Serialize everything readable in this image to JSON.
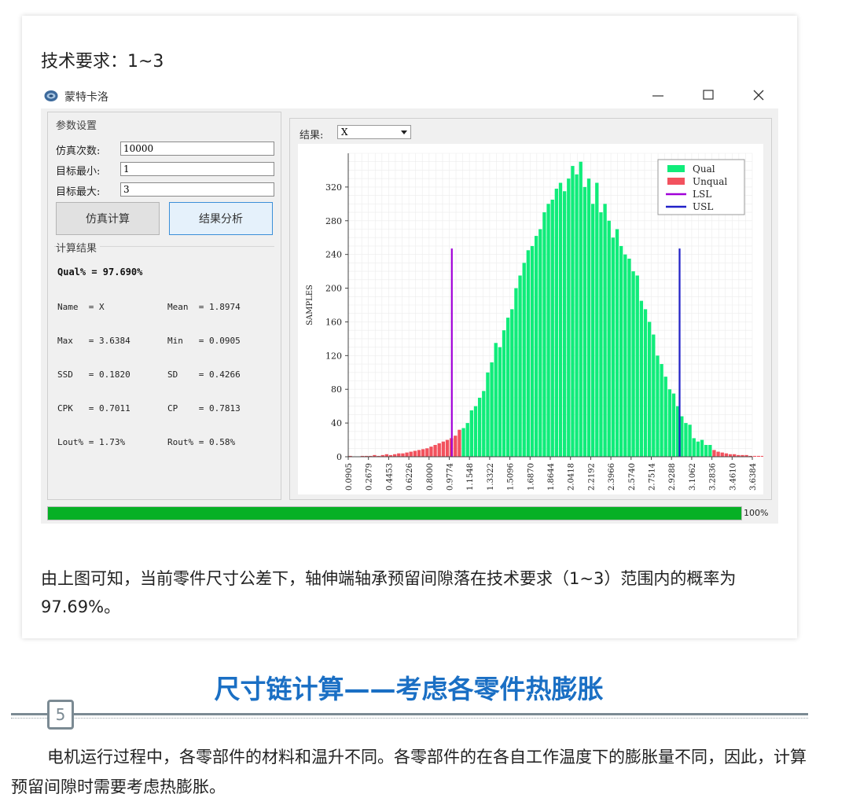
{
  "requirement": "技术要求：1~3",
  "window": {
    "title": "蒙特卡洛",
    "controls": {
      "minimize": "—",
      "maximize": "☐",
      "close": "✕"
    }
  },
  "params": {
    "group_label": "参数设置",
    "sim_count_label": "仿真次数:",
    "sim_count_value": "10000",
    "target_min_label": "目标最小:",
    "target_min_value": "1",
    "target_max_label": "目标最大:",
    "target_max_value": "3",
    "simulate_button": "仿真计算",
    "analyze_button": "结果分析"
  },
  "results": {
    "group_label": "计算结果",
    "qual_line": "Qual% = 97.690%",
    "stats": [
      "Name  = X",
      "Mean  = 1.8974",
      "Max   = 3.6384",
      "Min   = 0.0905",
      "SSD   = 0.1820",
      "SD    = 0.4266",
      "CPK   = 0.7011",
      "CP    = 0.7813",
      "Lout% = 1.73%",
      "Rout% = 0.58%"
    ]
  },
  "result_selector": {
    "label": "结果:",
    "value": "X"
  },
  "progress": {
    "value": 1.0,
    "label": "100%"
  },
  "colors": {
    "qual": "#10ec7a",
    "unqual": "#f2525e",
    "lsl": "#a000d8",
    "usl": "#2020c8",
    "progress": "#06b025",
    "accent": "#1a6fc4"
  },
  "chart_data": {
    "type": "bar",
    "ylabel": "SAMPLES",
    "xlabel": "",
    "ylim": [
      0,
      360
    ],
    "yticks": [
      0,
      40,
      80,
      120,
      160,
      200,
      240,
      280,
      320
    ],
    "xticks": [
      "0.0905",
      "0.2679",
      "0.4453",
      "0.6226",
      "0.8000",
      "0.9774",
      "1.1548",
      "1.3322",
      "1.5096",
      "1.6870",
      "1.8644",
      "2.0418",
      "2.2192",
      "2.3966",
      "2.5740",
      "2.7514",
      "2.9288",
      "3.1062",
      "3.2836",
      "3.4610",
      "3.6384"
    ],
    "legend": {
      "position": "top-right",
      "entries": [
        "Qual",
        "Unqual",
        "LSL",
        "USL"
      ]
    },
    "lsl": 1,
    "usl": 3,
    "limit_line_height": 247,
    "bin_start": 0.0905,
    "bin_width": 0.0355,
    "series": [
      {
        "name": "Unqual",
        "values": [
          1,
          0,
          0,
          1,
          1,
          1,
          2,
          1,
          2,
          3,
          2,
          3,
          4,
          4,
          5,
          6,
          7,
          8,
          9,
          10,
          12,
          14,
          16,
          18,
          20,
          22,
          25,
          32,
          8,
          6,
          5,
          4,
          3,
          3,
          2,
          2,
          2,
          1,
          1,
          1,
          1,
          1,
          1,
          0,
          1,
          0,
          1,
          0,
          1,
          0
        ]
      },
      {
        "name": "Qual",
        "values": [
          34,
          40,
          55,
          60,
          70,
          78,
          100,
          112,
          135,
          130,
          150,
          165,
          175,
          200,
          215,
          230,
          245,
          250,
          262,
          270,
          290,
          300,
          305,
          318,
          325,
          315,
          330,
          345,
          335,
          350,
          320,
          330,
          300,
          325,
          290,
          300,
          280,
          260,
          270,
          250,
          240,
          235,
          220,
          215,
          185,
          175,
          160,
          145,
          120,
          110,
          95,
          80,
          75,
          60,
          48,
          40,
          38,
          22,
          18,
          20,
          14,
          14
        ]
      }
    ]
  },
  "conclusion": "由上图可知，当前零件尺寸公差下，轴伸端轴承预留间隙落在技术要求（1~3）范围内的概率为97.69%。",
  "section": {
    "number": "5",
    "title": "尺寸链计算——考虑各零件热膨胀"
  },
  "body_text": "电机运行过程中，各零部件的材料和温升不同。各零部件的在各自工作温度下的膨胀量不同，因此，计算预留间隙时需要考虑热膨胀。"
}
